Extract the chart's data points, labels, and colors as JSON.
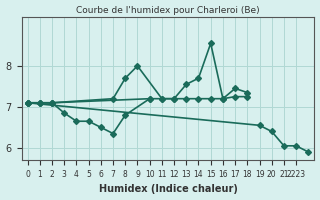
{
  "title": "Courbe de l'humidex pour Charleroi (Be)",
  "xlabel": "Humidex (Indice chaleur)",
  "ylabel": "",
  "background_color": "#d8f0ee",
  "grid_color": "#b0d8d4",
  "line_color": "#1a6b5a",
  "ylim": [
    5.7,
    9.2
  ],
  "xlim": [
    -0.5,
    23.5
  ],
  "yticks": [
    6,
    7,
    8
  ],
  "xtick_pos": [
    0,
    1,
    2,
    3,
    4,
    5,
    6,
    7,
    8,
    9,
    10,
    11,
    12,
    13,
    14,
    15,
    16,
    17,
    18,
    19,
    20,
    21,
    22
  ],
  "xtick_labels": [
    "0",
    "1",
    "2",
    "3",
    "4",
    "5",
    "6",
    "7",
    "8",
    "9",
    "10",
    "11",
    "12",
    "13",
    "14",
    "15",
    "16",
    "17",
    "18",
    "19",
    "20",
    "21",
    "2223"
  ],
  "line1_x": [
    0,
    1,
    2,
    7,
    8,
    9,
    11,
    12,
    13,
    14,
    15,
    16,
    17,
    18
  ],
  "line1_y": [
    7.1,
    7.1,
    7.1,
    7.2,
    7.7,
    8.0,
    7.2,
    7.2,
    7.55,
    7.7,
    8.55,
    7.2,
    7.45,
    7.35
  ],
  "line2_x": [
    0,
    1,
    2,
    10,
    11,
    12,
    13,
    14,
    15,
    16,
    17,
    18
  ],
  "line2_y": [
    7.1,
    7.1,
    7.1,
    7.2,
    7.2,
    7.2,
    7.2,
    7.2,
    7.2,
    7.2,
    7.25,
    7.25
  ],
  "line3_x": [
    0,
    1,
    2,
    3,
    4,
    5,
    6,
    7,
    8,
    10
  ],
  "line3_y": [
    7.1,
    7.1,
    7.1,
    6.85,
    6.65,
    6.65,
    6.5,
    6.35,
    6.8,
    7.2
  ],
  "line4_x": [
    0,
    19,
    20,
    21,
    22,
    23
  ],
  "line4_y": [
    7.1,
    6.55,
    6.4,
    6.05,
    6.05,
    5.9
  ],
  "marker": "D",
  "markersize": 3,
  "linewidth": 1.2
}
